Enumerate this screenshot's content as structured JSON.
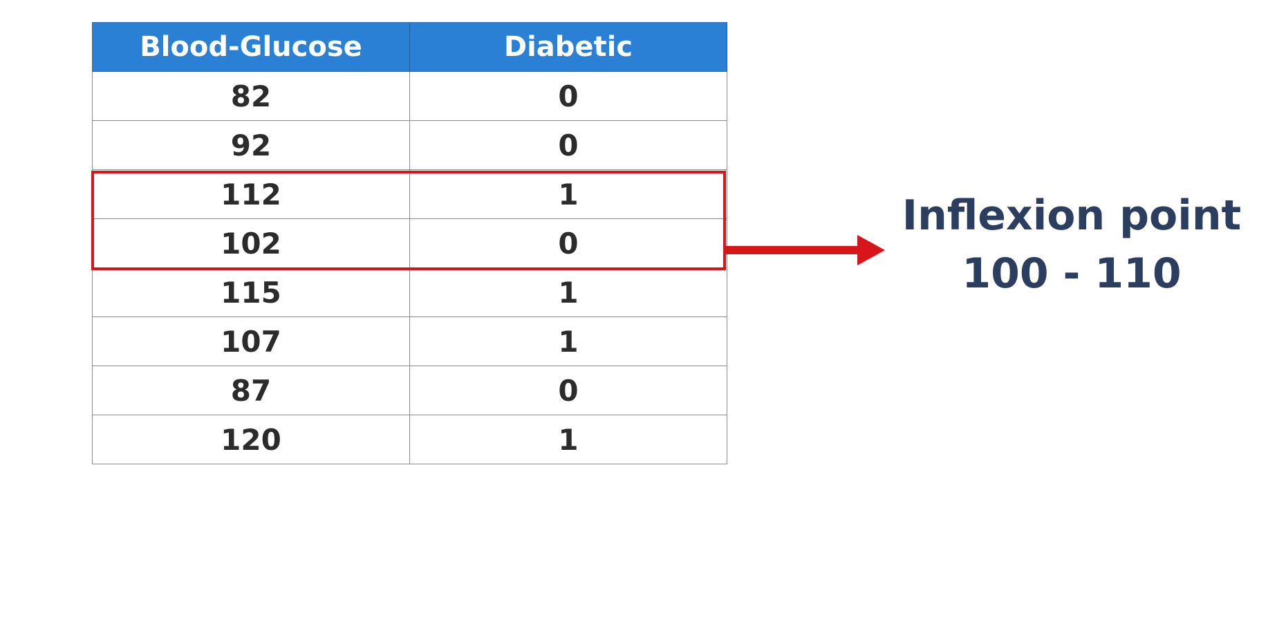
{
  "table": {
    "headers": [
      "Blood-Glucose",
      "Diabetic"
    ],
    "rows": [
      [
        "82",
        "0"
      ],
      [
        "92",
        "0"
      ],
      [
        "112",
        "1"
      ],
      [
        "102",
        "0"
      ],
      [
        "115",
        "1"
      ],
      [
        "107",
        "1"
      ],
      [
        "87",
        "0"
      ],
      [
        "120",
        "1"
      ]
    ],
    "highlighted_rows": [
      2,
      3
    ]
  },
  "annotation": {
    "title": "Inflexion point",
    "range": "100 - 110"
  },
  "colors": {
    "header_bg": "#2980d4",
    "header_text": "#ffffff",
    "highlight": "#d7161b",
    "annotation_text": "#2c3e5f"
  }
}
